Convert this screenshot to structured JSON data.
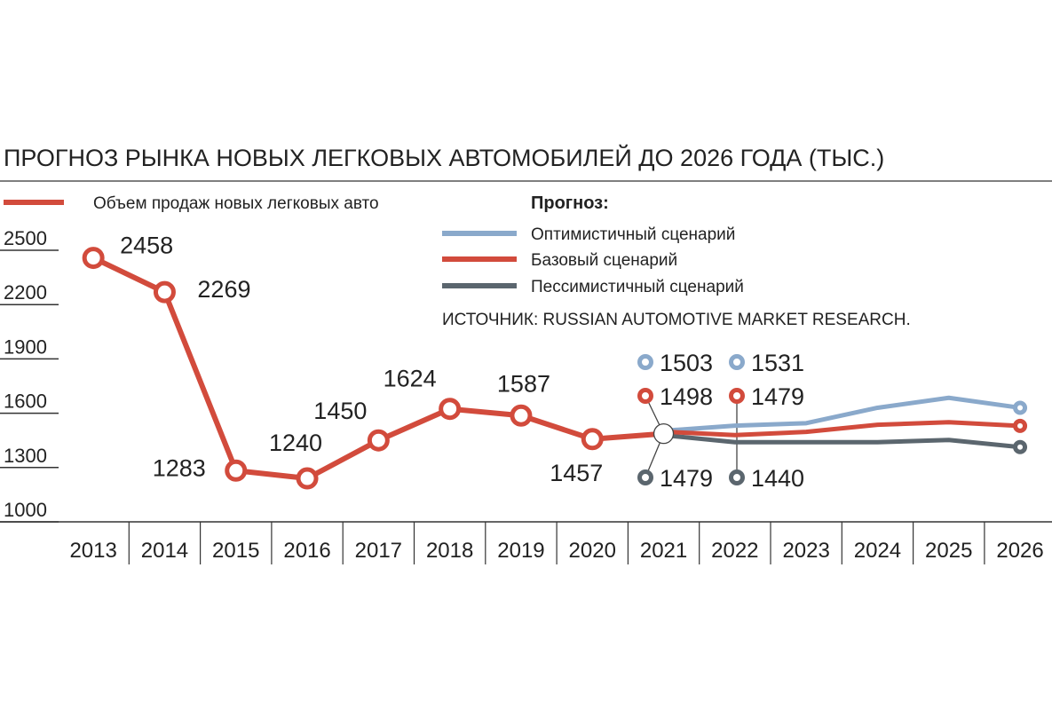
{
  "chart_data": {
    "type": "line",
    "title": "ПРОГНОЗ РЫНКА НОВЫХ ЛЕГКОВЫХ АВТОМОБИЛЕЙ ДО 2026 ГОДА (ТЫС.)",
    "legend_title": "Прогноз:",
    "source": "ИСТОЧНИК: RUSSIAN AUTOMOTIVE MARKET RESEARCH.",
    "categories": [
      "2013",
      "2014",
      "2015",
      "2016",
      "2017",
      "2018",
      "2019",
      "2020",
      "2021",
      "2022",
      "2023",
      "2024",
      "2025",
      "2026"
    ],
    "ylim": [
      1000,
      2500
    ],
    "yticks": [
      1000,
      1300,
      1600,
      1900,
      2200,
      2500
    ],
    "series": [
      {
        "name": "Объем продаж новых легковых авто",
        "color": "#d24b3c",
        "values": [
          2458,
          2269,
          1283,
          1240,
          1450,
          1624,
          1587,
          1457,
          1487,
          null,
          null,
          null,
          null,
          null
        ]
      },
      {
        "name": "Оптимистичный сценарий",
        "color": "#8aa9cb",
        "values": [
          null,
          null,
          null,
          null,
          null,
          null,
          null,
          null,
          1503,
          1531,
          1545,
          1630,
          1685,
          1630
        ]
      },
      {
        "name": "Базовый сценарий",
        "color": "#d24b3c",
        "values": [
          null,
          null,
          null,
          null,
          null,
          null,
          null,
          null,
          1498,
          1479,
          1497,
          1536,
          1550,
          1530
        ]
      },
      {
        "name": "Пессимистичный сценарий",
        "color": "#5b666e",
        "values": [
          null,
          null,
          null,
          null,
          null,
          null,
          null,
          null,
          1479,
          1440,
          1440,
          1440,
          1452,
          1413
        ]
      }
    ]
  }
}
